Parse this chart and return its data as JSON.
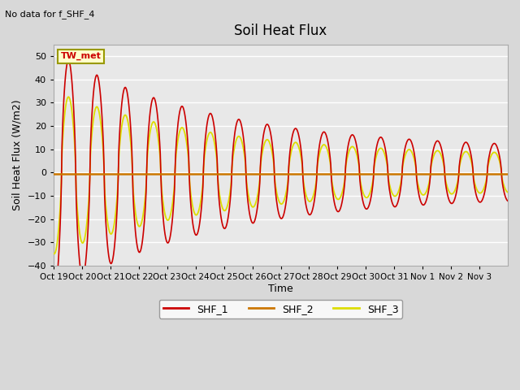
{
  "title": "Soil Heat Flux",
  "subtitle": "No data for f_SHF_4",
  "ylabel": "Soil Heat Flux (W/m2)",
  "xlabel": "Time",
  "ylim": [
    -40,
    55
  ],
  "yticks": [
    -40,
    -30,
    -20,
    -10,
    0,
    10,
    20,
    30,
    40,
    50
  ],
  "fig_bg_color": "#d8d8d8",
  "plot_bg_color": "#e8e8e8",
  "shf1_color": "#cc0000",
  "shf2_color": "#cc7700",
  "shf3_color": "#dddd00",
  "tw_met_box_color": "#ffffcc",
  "tw_met_box_edge": "#999900",
  "grid_color": "#ffffff",
  "grid_linewidth": 1.0,
  "tick_labels": [
    "Oct 19",
    "Oct 20",
    "Oct 21",
    "Oct 22",
    "Oct 23",
    "Oct 24",
    "Oct 25",
    "Oct 26",
    "Oct 27",
    "Oct 28",
    "Oct 29",
    "Oct 30",
    "Oct 31",
    "Nov 1",
    "Nov 2",
    "Nov 3"
  ],
  "n_days": 16,
  "n_per_day": 48
}
